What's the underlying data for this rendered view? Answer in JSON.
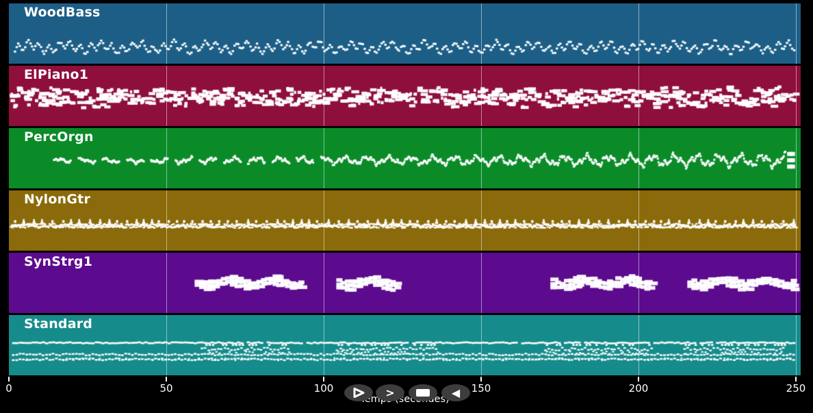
{
  "app": {
    "background": "#000000",
    "note_color": "#ffffff",
    "gridline_color": "rgba(255,255,255,0.5)"
  },
  "axis": {
    "label": "Temps (secondes)",
    "text_color": "#ffffff",
    "t_min": 0,
    "t_max": 251.5,
    "ticks": [
      {
        "t": 0,
        "label": "0"
      },
      {
        "t": 50,
        "label": "50"
      },
      {
        "t": 100,
        "label": "100"
      },
      {
        "t": 150,
        "label": "150"
      },
      {
        "t": 200,
        "label": "200"
      },
      {
        "t": 250,
        "label": "250"
      }
    ],
    "gridline_seconds": [
      50,
      100,
      150,
      200,
      250
    ]
  },
  "transport": {
    "button_bg": "#3d3d3d",
    "glyph_color": "#ffffff",
    "buttons": [
      {
        "name": "play",
        "icon": "play-outline-triangle"
      },
      {
        "name": "forward",
        "icon": "greater-than",
        "char": ">"
      },
      {
        "name": "stop",
        "icon": "stop-rectangle"
      },
      {
        "name": "rewind",
        "icon": "filled-left-triangle",
        "char": "◀"
      }
    ]
  },
  "tracks": [
    {
      "name": "WoodBass",
      "color": "#1c5e86",
      "pattern": {
        "gen": "walk",
        "t0": 1.5,
        "t1": 249.5,
        "dt": 0.55,
        "jt": 0.18,
        "yc": 0.71,
        "w": 3.5,
        "h": 3,
        "jy": 0.022,
        "waves": [
          [
            0.062,
            1.9,
            0
          ],
          [
            0.048,
            0.55,
            1.3
          ]
        ]
      }
    },
    {
      "name": "ElPiano1",
      "color": "#8e0e3c",
      "pattern": {
        "gen": "chords",
        "t0": 0.4,
        "t1": 249.6,
        "dt": 1.15,
        "jt": 0.4,
        "yc": 0.5,
        "spread": 0.125,
        "nmin": 2,
        "nmax": 5,
        "wmin": 3,
        "wmax": 12,
        "h": 4.5
      }
    },
    {
      "name": "PercOrgn",
      "color": "#0a8b28",
      "pattern": {
        "gen": "melody",
        "t0": 14,
        "t1": 246.5,
        "dt": 0.23,
        "yc": 0.52,
        "w": 3,
        "h": 3,
        "jy": 0.012,
        "ampStart": 0.045,
        "ampEnd": 0.145,
        "waves": [
          [
            1,
            0.9,
            0
          ],
          [
            0.6,
            2.3,
            0.7
          ],
          [
            0.35,
            5.1,
            2.1
          ]
        ],
        "phrases": {
          "until": 100,
          "play": 5.5,
          "gap": 2.2
        },
        "endBlock": {
          "t": 247.2,
          "cols": 2,
          "rows": 3,
          "w": 7,
          "h": 6,
          "yc": 0.5
        }
      }
    },
    {
      "name": "NylonGtr",
      "color": "#8a6a0a",
      "pattern": {
        "gen": "strum",
        "t0": 0.3,
        "t1": 250,
        "dt": 0.17,
        "yc": 0.575,
        "jy": 0.035,
        "wmin": 2,
        "wmax": 4.5,
        "h": 2.3,
        "accentEvery": 2.9,
        "accentRise": 0.1
      }
    },
    {
      "name": "SynStrg1",
      "color": "#5c0a8e",
      "pattern": {
        "gen": "pads",
        "segments": [
          [
            59,
            92
          ],
          [
            104,
            123.5
          ],
          [
            172,
            204
          ],
          [
            215.5,
            249
          ]
        ],
        "dt": 1.35,
        "yc": 0.47,
        "h": 5.5,
        "wmin": 8,
        "wmax": 14,
        "stackOff": 0.065,
        "wave": 0.045
      }
    },
    {
      "name": "Standard",
      "color": "#168b8b",
      "pattern": {
        "gen": "drums",
        "t0": 1,
        "t1": 249,
        "row1": {
          "y": 0.445,
          "dt": 1.05,
          "w": 5,
          "h": 2.8
        },
        "row2": {
          "y": 0.64,
          "dt": 1.05,
          "w": 4,
          "h": 2.5
        },
        "row3": {
          "y": 0.72,
          "dt": 1.05,
          "w": 4,
          "h": 2.5
        },
        "midY": 0.55,
        "busy": [
          [
            60,
            89
          ],
          [
            103,
            136
          ],
          [
            170,
            204
          ],
          [
            214,
            246
          ]
        ]
      }
    }
  ],
  "chart_data": {
    "type": "scatter",
    "title": "",
    "xlabel": "Temps (secondes)",
    "ylabel": "",
    "x_range_seconds": [
      0,
      251.5
    ],
    "x_ticks": [
      0,
      50,
      100,
      150,
      200,
      250
    ],
    "grid": "vertical gridlines every 50 s",
    "legend_position": "track names top-left of each lane",
    "tracks": [
      {
        "name": "WoodBass",
        "color": "#1c5e86",
        "active_seconds": [
          [
            1,
            250
          ]
        ],
        "description": "continuous walking-bass line of tiny dashes oscillating around 70% lane depth"
      },
      {
        "name": "ElPiano1",
        "color": "#8e0e3c",
        "active_seconds": [
          [
            0,
            250
          ]
        ],
        "description": "continuous chord clusters of short/medium rectangles around mid-height"
      },
      {
        "name": "PercOrgn",
        "color": "#0a8b28",
        "active_seconds": [
          [
            14,
            250
          ]
        ],
        "description": "wavy melodic line, sparse phrases until ~100 s then continuous with growing amplitude, chord block at end"
      },
      {
        "name": "NylonGtr",
        "color": "#8a6a0a",
        "active_seconds": [
          [
            0,
            250
          ]
        ],
        "description": "dense strummed micro-notes in a narrow band just below centre with occasional accent peaks"
      },
      {
        "name": "SynStrg1",
        "color": "#5c0a8e",
        "active_seconds": [
          [
            59,
            92
          ],
          [
            104,
            124
          ],
          [
            172,
            204
          ],
          [
            215,
            249
          ]
        ],
        "description": "sustained pad-chord blocks in four separated sections"
      },
      {
        "name": "Standard",
        "color": "#168b8b",
        "active_seconds": [
          [
            1,
            249
          ]
        ],
        "description": "drum grid: steady upper dash row plus lower double row, extra fill rows during 60-89, 103-136, 170-204 and 214-246 s"
      }
    ]
  }
}
